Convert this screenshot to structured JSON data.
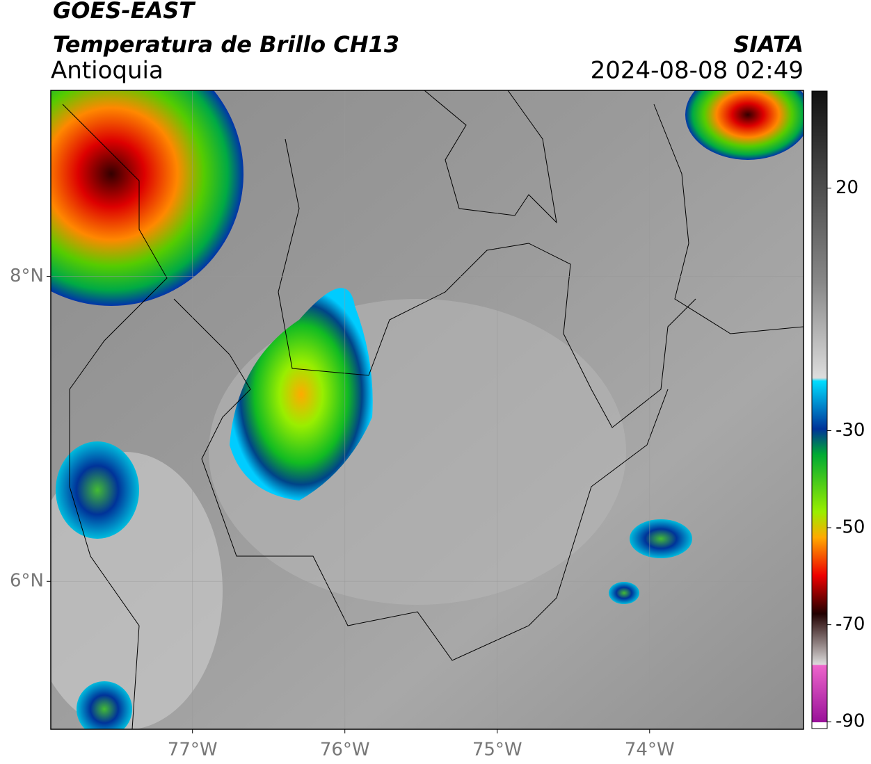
{
  "header": {
    "source": "GOES-EAST",
    "product": "Temperatura de Brillo CH13",
    "region": "Antioquia",
    "agency": "SIATA",
    "datetime": "2024-08-08 02:49"
  },
  "map": {
    "xlim": [
      -77.93,
      -72.99
    ],
    "ylim": [
      5.03,
      9.22
    ],
    "xticks": [
      {
        "value": -77,
        "label": "77°W"
      },
      {
        "value": -76,
        "label": "76°W"
      },
      {
        "value": -75,
        "label": "75°W"
      },
      {
        "value": -74,
        "label": "74°W"
      }
    ],
    "yticks": [
      {
        "value": 6,
        "label": "6°N"
      },
      {
        "value": 8,
        "label": "8°N"
      }
    ],
    "grid": true
  },
  "colorbar": {
    "lim": [
      -91.4,
      40
    ],
    "ticks": [
      20,
      -30,
      -50,
      -70,
      -90
    ]
  }
}
